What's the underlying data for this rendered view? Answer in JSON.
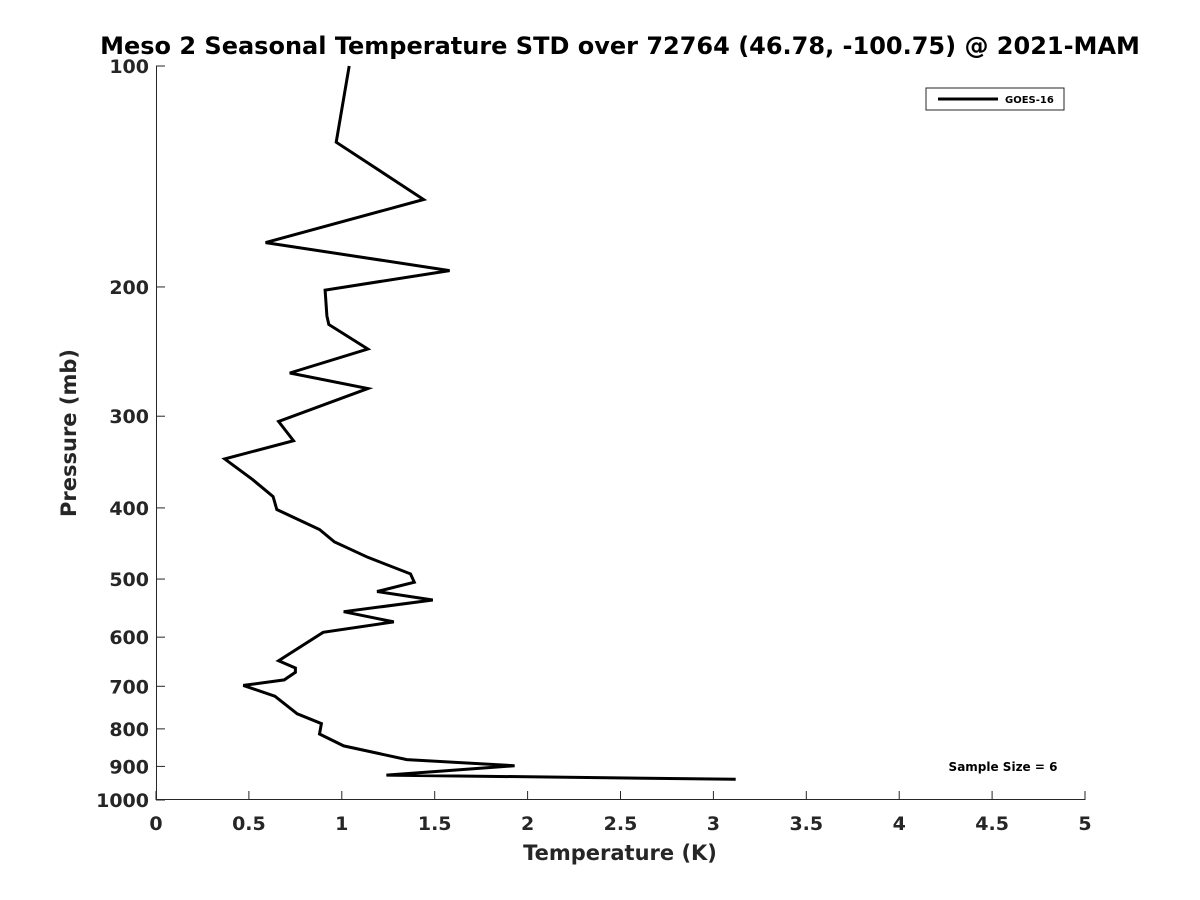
{
  "chart_data": {
    "type": "line",
    "title": "Meso 2 Seasonal Temperature STD over 72764 (46.78, -100.75) @ 2021-MAM",
    "xlabel": "Temperature (K)",
    "ylabel": "Pressure (mb)",
    "xlim": [
      0,
      5
    ],
    "ylim": [
      1000,
      100
    ],
    "yscale": "log",
    "x_ticks": [
      "0",
      "0.5",
      "1",
      "1.5",
      "2",
      "2.5",
      "3",
      "3.5",
      "4",
      "4.5",
      "5"
    ],
    "y_ticks": [
      "100",
      "200",
      "300",
      "400",
      "500",
      "600",
      "700",
      "800",
      "900",
      "1000"
    ],
    "grid": false,
    "legend_position": "top-right",
    "annotation": "Sample Size = 6",
    "series": [
      {
        "name": "GOES-16",
        "color": "#000000",
        "x": [
          1.04,
          0.97,
          1.44,
          0.59,
          1.58,
          0.91,
          0.92,
          0.93,
          1.14,
          0.72,
          1.14,
          0.66,
          0.74,
          0.37,
          0.52,
          0.63,
          0.65,
          0.88,
          0.96,
          1.14,
          1.37,
          1.39,
          1.19,
          1.49,
          1.01,
          1.28,
          0.9,
          0.66,
          0.75,
          0.75,
          0.69,
          0.47,
          0.64,
          0.76,
          0.89,
          0.88,
          1.01,
          1.35,
          1.93,
          1.24,
          3.12
        ],
        "y": [
          100,
          127,
          152,
          174,
          190,
          202,
          219,
          225,
          243,
          262,
          275,
          305,
          324,
          343,
          366,
          386,
          402,
          428,
          445,
          467,
          492,
          505,
          520,
          534,
          554,
          572,
          591,
          646,
          661,
          670,
          686,
          698,
          722,
          763,
          787,
          813,
          844,
          881,
          898,
          925,
          937
        ]
      }
    ]
  }
}
